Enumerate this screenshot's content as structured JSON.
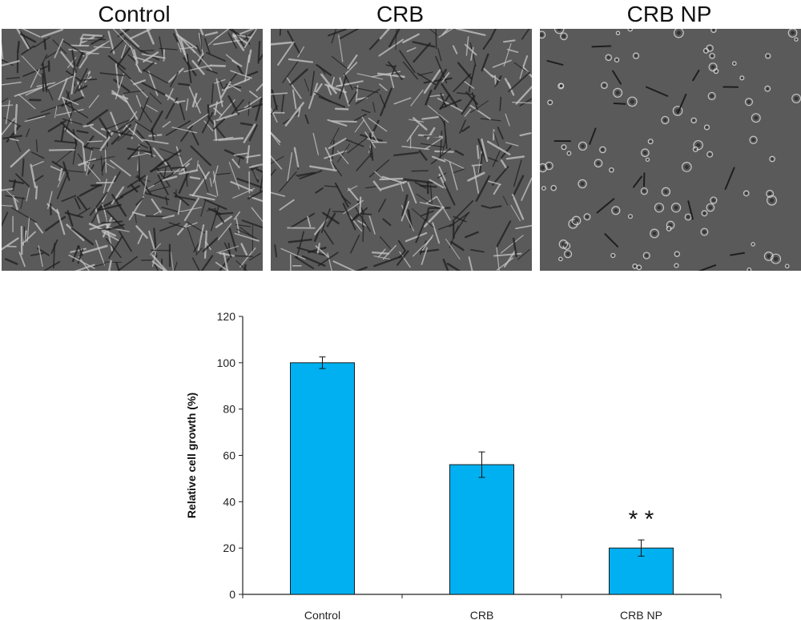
{
  "panels": [
    {
      "title": "Control",
      "texture": "dense"
    },
    {
      "title": "CRB",
      "texture": "medium"
    },
    {
      "title": "CRB NP",
      "texture": "sparse"
    }
  ],
  "colors": {
    "bar": "#00b0f0",
    "bar_stroke": "#1a1a1a",
    "axis": "#222222",
    "micro_bg": "#5a5a5a"
  },
  "chart_data": {
    "type": "bar",
    "categories": [
      "Control",
      "CRB",
      "CRB NP"
    ],
    "values": [
      100,
      56,
      20
    ],
    "errors": [
      2.5,
      5.5,
      3.5
    ],
    "ylabel": "Relative cell growth (%)",
    "xlabel": "",
    "ylim": [
      0,
      120
    ],
    "yticks": [
      0,
      20,
      40,
      60,
      80,
      100,
      120
    ],
    "grid": false,
    "annotations": [
      {
        "category": "CRB NP",
        "text": "* *"
      }
    ]
  }
}
